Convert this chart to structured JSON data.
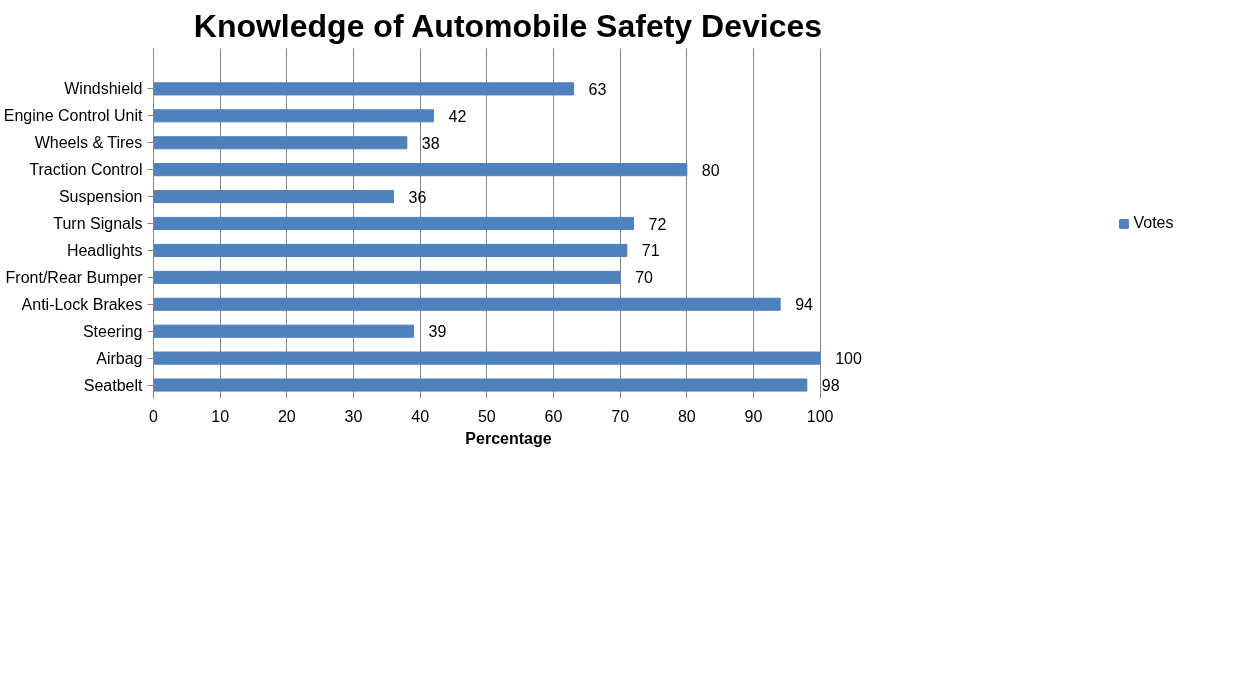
{
  "chart_data": {
    "type": "bar",
    "orientation": "horizontal",
    "title": "Knowledge of Automobile Safety Devices",
    "xlabel": "Percentage",
    "categories": [
      "Windshield",
      "Engine Control Unit",
      "Wheels & Tires",
      "Traction Control",
      "Suspension",
      "Turn Signals",
      "Headlights",
      "Front/Rear Bumper",
      "Anti-Lock Brakes",
      "Steering",
      "Airbag",
      "Seatbelt"
    ],
    "series": [
      {
        "name": "Votes",
        "color": "#4f81bd",
        "values": [
          63,
          42,
          38,
          80,
          36,
          72,
          71,
          70,
          94,
          39,
          100,
          98
        ]
      }
    ],
    "xlim": [
      0,
      100
    ],
    "xticks": [
      0,
      10,
      20,
      30,
      40,
      50,
      60,
      70,
      80,
      90,
      100
    ],
    "grid": "x",
    "legend": "right",
    "data_labels": true
  }
}
